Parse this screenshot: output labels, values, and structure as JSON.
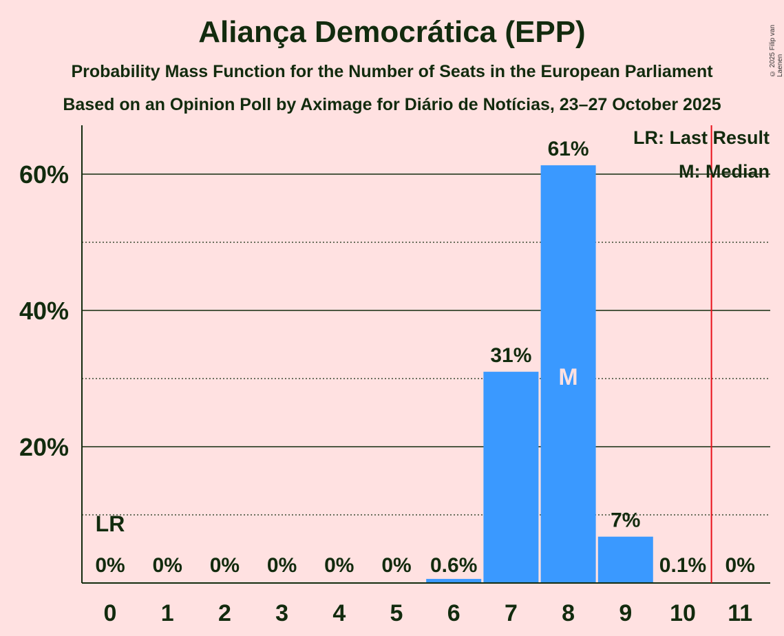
{
  "title": "Aliança Democrática (EPP)",
  "subtitle1": "Probability Mass Function for the Number of Seats in the European Parliament",
  "subtitle2": "Based on an Opinion Poll by Aximage for Diário de Notícias, 23–27 October 2025",
  "copyright": "© 2025 Filip van Laenen",
  "chart_data": {
    "type": "bar",
    "categories": [
      "0",
      "1",
      "2",
      "3",
      "4",
      "5",
      "6",
      "7",
      "8",
      "9",
      "10",
      "11"
    ],
    "values": [
      0,
      0,
      0,
      0,
      0,
      0,
      0.6,
      31,
      61.3,
      6.8,
      0.1,
      0
    ],
    "labels": [
      "0%",
      "0%",
      "0%",
      "0%",
      "0%",
      "0%",
      "0.6%",
      "31%",
      "61%",
      "7%",
      "0.1%",
      "0%"
    ],
    "ylim": [
      0,
      66
    ],
    "yticks": [
      20,
      40,
      60
    ],
    "ytick_labels": [
      "20%",
      "40%",
      "60%"
    ],
    "minor_gridlines": [
      10,
      30,
      50
    ],
    "last_result_seat": 10.5,
    "last_result_marker": "LR",
    "last_result_marker_index": 0,
    "median_index": 8,
    "median_marker": "M",
    "legend": [
      "LR: Last Result",
      "M: Median"
    ],
    "colors": {
      "bar": "#3a99ff",
      "text": "#122b0e",
      "last_result_line": "#e8101a",
      "background": "#ffe1e1",
      "median_text": "#ffe1e1"
    }
  }
}
